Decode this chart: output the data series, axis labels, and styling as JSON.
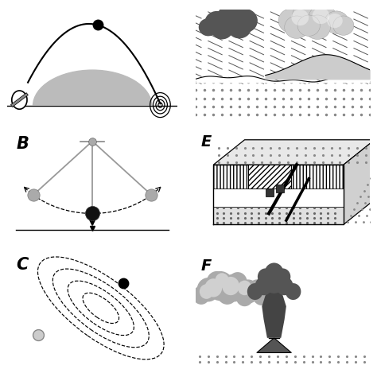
{
  "background": "#ffffff",
  "panel_A": {
    "hill_color": "#bbbbbb",
    "arc_color": "#000000",
    "ball_color": "#111111",
    "spiral_color": "#000000",
    "left_marker_color": "#555555"
  },
  "panel_B": {
    "label": "B",
    "pivot_color": "#aaaaaa",
    "rod_color": "#999999",
    "ball_dark": "#111111",
    "ball_gray": "#aaaaaa",
    "arrow_color": "#000000",
    "arc_color": "#000000"
  },
  "panel_C": {
    "label": "C",
    "ellipse_color": "#000000",
    "ball_color": "#111111",
    "small_circle_color": "#cccccc"
  },
  "panel_D": {
    "dark_cloud_color": "#555555",
    "light_cloud_color": "#cccccc",
    "rain_line_color": "#666666",
    "ground_dot_color": "#888888",
    "mound_color": "#cccccc"
  },
  "panel_E": {
    "label": "E",
    "box_color": "#000000",
    "dot_hatch_color": "#aaaaaa",
    "stripe_color": "#000000",
    "fault_color": "#000000"
  },
  "panel_F": {
    "label": "F",
    "dark_smoke_color": "#555555",
    "light_smoke_color": "#aaaaaa",
    "cone_color": "#666666",
    "plume_dark": "#777777",
    "plume_light": "#dddddd"
  }
}
